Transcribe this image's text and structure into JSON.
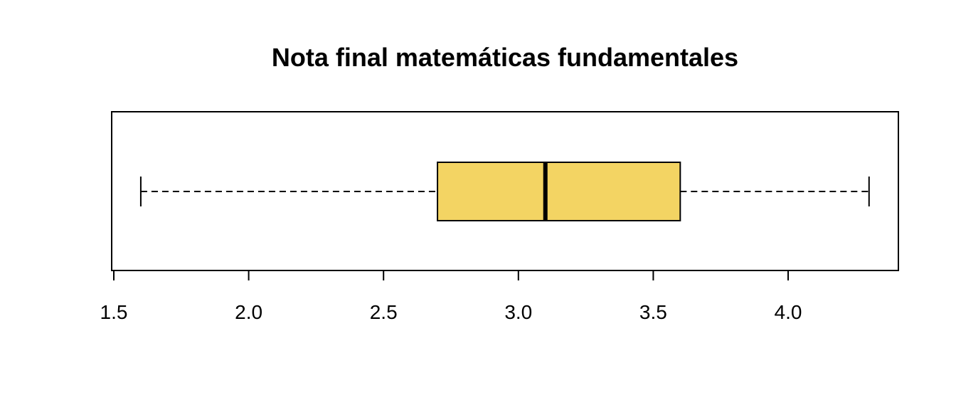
{
  "chart_data": {
    "type": "boxplot",
    "orientation": "horizontal",
    "title": "Nota final matemáticas fundamentales",
    "xlabel": "",
    "ylabel": "",
    "xlim": [
      1.5,
      4.4
    ],
    "ticks": [
      1.5,
      2.0,
      2.5,
      3.0,
      3.5,
      4.0
    ],
    "tick_labels": [
      "1.5",
      "2.0",
      "2.5",
      "3.0",
      "3.5",
      "4.0"
    ],
    "box": {
      "whisker_low": 1.6,
      "q1": 2.7,
      "median": 3.1,
      "q3": 3.6,
      "whisker_high": 4.3
    },
    "grid": false,
    "colors": {
      "box_fill": "#F3D463",
      "stroke": "#000000"
    }
  }
}
